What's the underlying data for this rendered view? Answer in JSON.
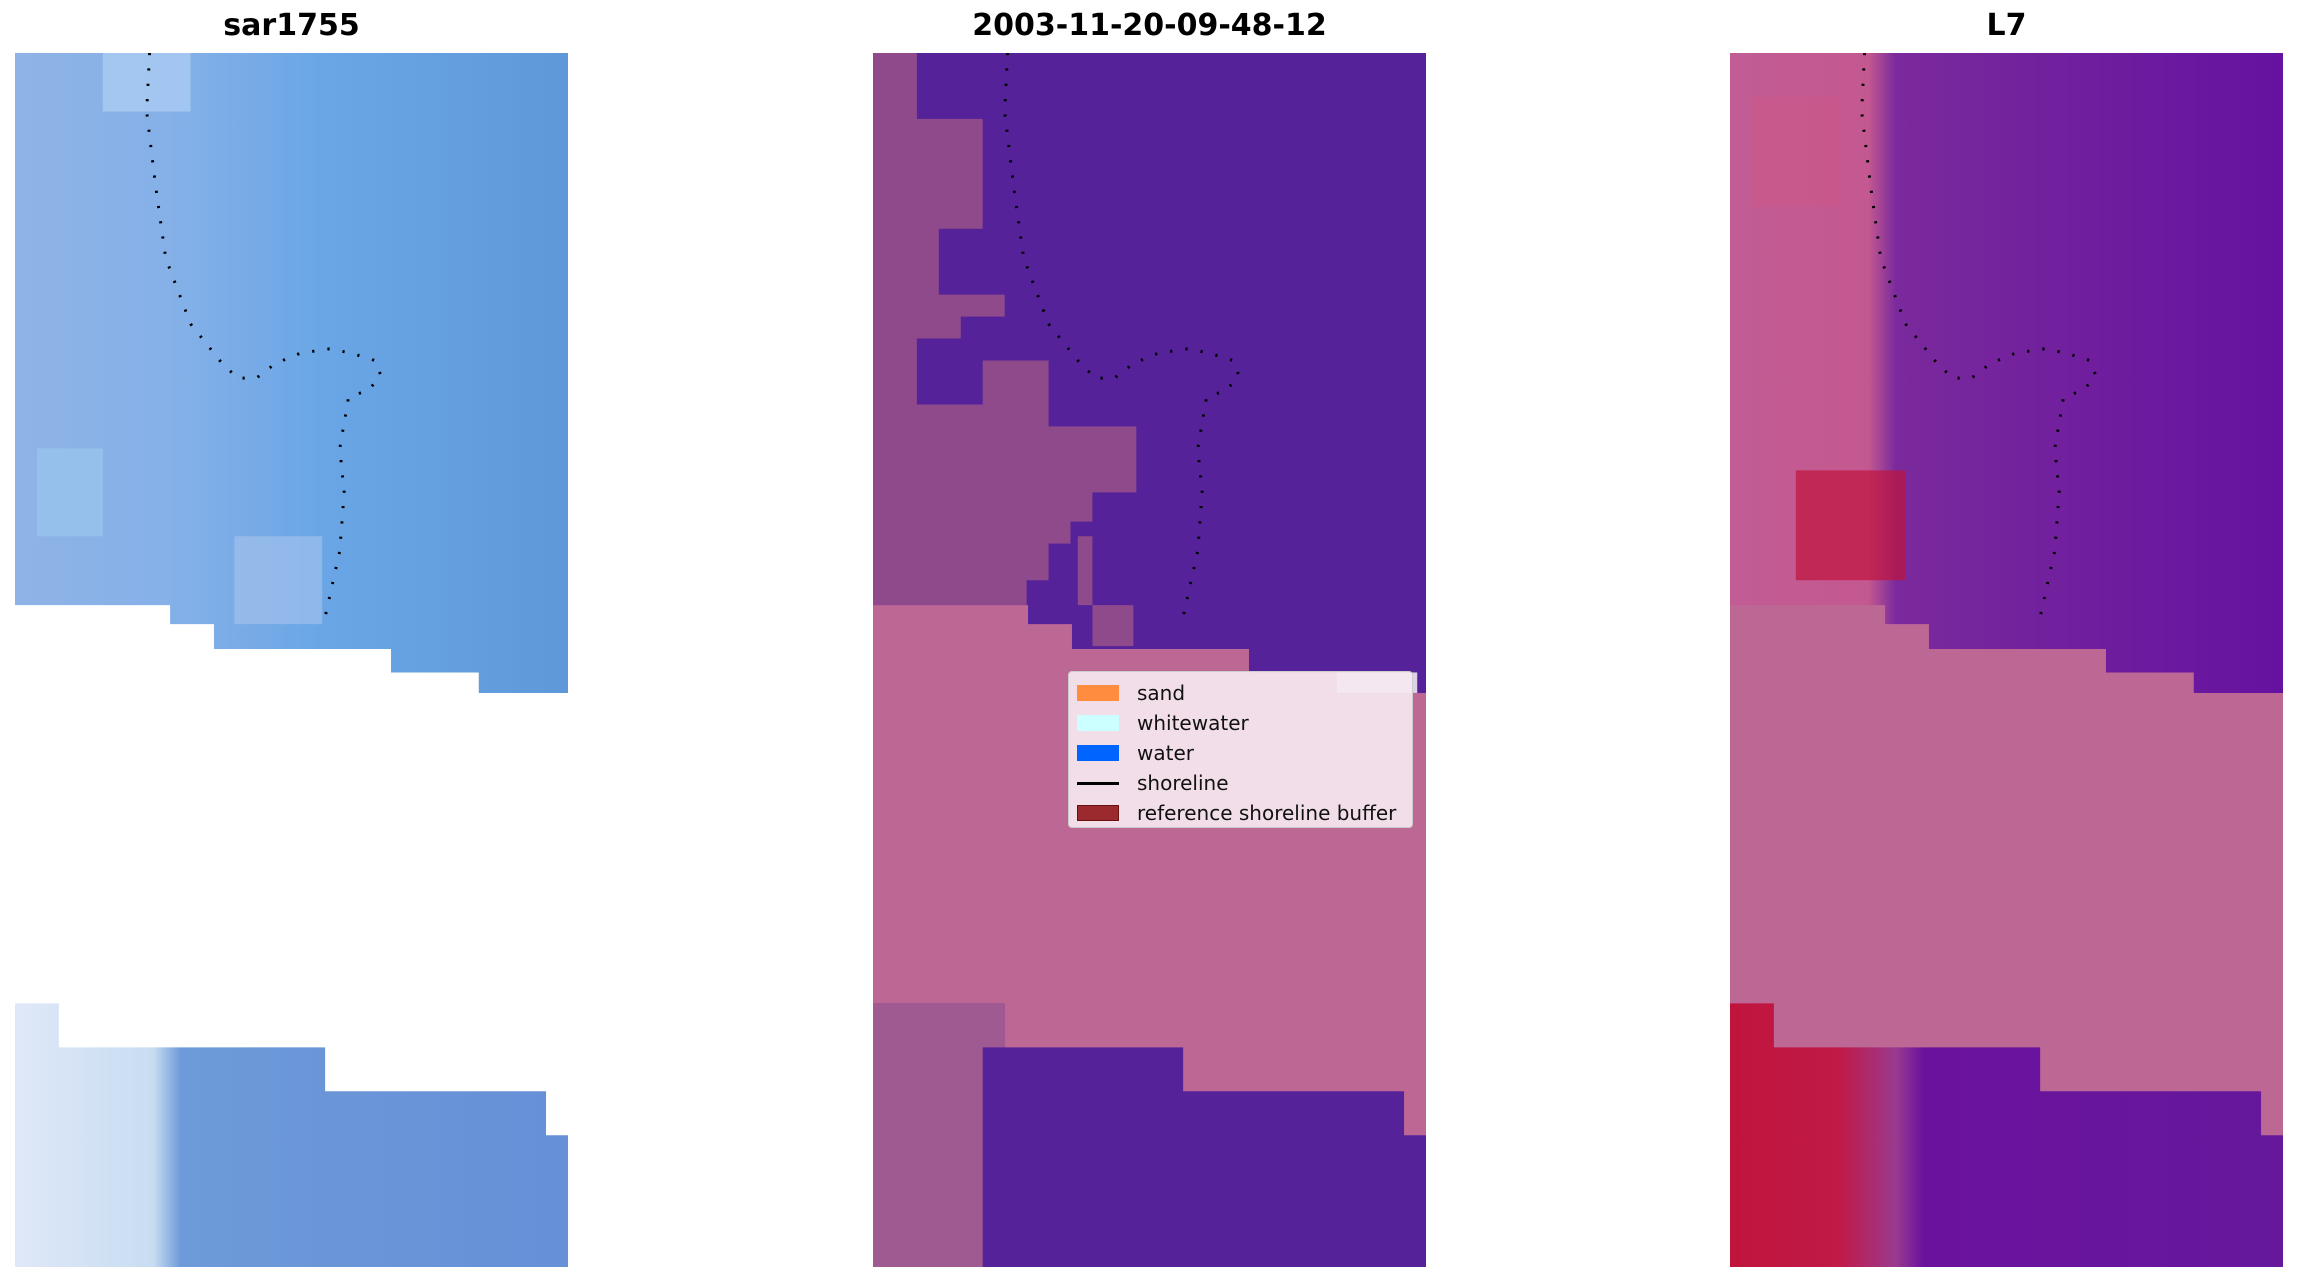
{
  "panels": [
    {
      "title": "sar1755"
    },
    {
      "title": "2003-11-20-09-48-12"
    },
    {
      "title": "L7"
    }
  ],
  "legend": {
    "items": [
      {
        "label": "sand",
        "color": "#ff8c3f",
        "kind": "patch"
      },
      {
        "label": "whitewater",
        "color": "#ccffff",
        "kind": "patch"
      },
      {
        "label": "water",
        "color": "#0064ff",
        "kind": "patch"
      },
      {
        "label": "shoreline",
        "color": "#000000",
        "kind": "line"
      },
      {
        "label": "reference shoreline buffer",
        "color": "#9a2a2e",
        "kind": "patch"
      }
    ]
  },
  "colors": {
    "sar_blue": "#6b9bdc",
    "class_purple": "#55229a",
    "class_pink": "#bd6795",
    "class_mauve": "#8e4a8a",
    "l7_purple": "#6a12a0",
    "l7_red": "#c0143c"
  }
}
